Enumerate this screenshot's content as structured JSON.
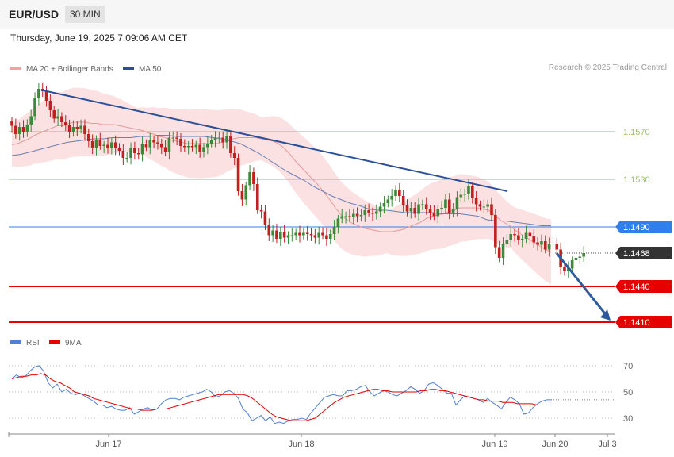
{
  "header": {
    "pair": "EUR/USD",
    "timeframe": "30 MIN",
    "datetime": "Thursday, June 19, 2025 7:09:06 AM CET"
  },
  "legend": {
    "ma20": "MA 20 + Bollinger Bands",
    "ma50": "MA 50",
    "credit": "Research © 2025 Trading Central"
  },
  "colors": {
    "up": "#3a8a3a",
    "down": "#c21f1f",
    "resistance": "#9ac25e",
    "support": "#e60000",
    "pivot": "#2f80ed",
    "trend": "#2c4f9a",
    "band": "#f7c9c9",
    "rsi": "#4f7fd6",
    "rsi_ma": "#e60000"
  },
  "chart_data": {
    "type": "candlestick",
    "x_ticks": [
      "Jun 17",
      "Jun 18",
      "Jun 19",
      "Jun 20",
      "Jul 3"
    ],
    "y_range": [
      1.1395,
      1.161
    ],
    "levels": [
      {
        "value": 1.157,
        "label": "1.1570",
        "kind": "resistance"
      },
      {
        "value": 1.153,
        "label": "1.1530",
        "kind": "resistance"
      },
      {
        "value": 1.149,
        "label": "1.1490",
        "kind": "pivot"
      },
      {
        "value": 1.1468,
        "label": "1.1468",
        "kind": "last"
      },
      {
        "value": 1.144,
        "label": "1.1440",
        "kind": "support"
      },
      {
        "value": 1.141,
        "label": "1.1410",
        "kind": "support"
      }
    ],
    "closes": [
      1.1575,
      1.1568,
      1.1574,
      1.157,
      1.1576,
      1.1583,
      1.1598,
      1.1606,
      1.1604,
      1.1596,
      1.1588,
      1.1581,
      1.1583,
      1.1578,
      1.1576,
      1.157,
      1.1574,
      1.1572,
      1.1575,
      1.1568,
      1.1562,
      1.1556,
      1.1563,
      1.1558,
      1.1559,
      1.1556,
      1.1561,
      1.1556,
      1.1554,
      1.1548,
      1.1548,
      1.1556,
      1.1552,
      1.1551,
      1.156,
      1.1557,
      1.1563,
      1.1561,
      1.156,
      1.1557,
      1.1553,
      1.1565,
      1.1565,
      1.1564,
      1.1558,
      1.1557,
      1.1558,
      1.1557,
      1.1559,
      1.1553,
      1.1557,
      1.156,
      1.1563,
      1.1565,
      1.1565,
      1.1561,
      1.1566,
      1.1552,
      1.1548,
      1.152,
      1.1513,
      1.1525,
      1.1536,
      1.1526,
      1.1504,
      1.1503,
      1.1492,
      1.1483,
      1.1487,
      1.148,
      1.1486,
      1.1481,
      1.1483,
      1.1483,
      1.1485,
      1.1483,
      1.1485,
      1.1484,
      1.1483,
      1.1481,
      1.1485,
      1.1483,
      1.148,
      1.1484,
      1.149,
      1.1497,
      1.1499,
      1.1499,
      1.1498,
      1.1501,
      1.1499,
      1.15,
      1.1504,
      1.1502,
      1.1501,
      1.1503,
      1.1507,
      1.151,
      1.1513,
      1.1516,
      1.1521,
      1.1516,
      1.1508,
      1.1503,
      1.1506,
      1.1501,
      1.1509,
      1.1509,
      1.1505,
      1.1502,
      1.1499,
      1.1505,
      1.1506,
      1.1513,
      1.1502,
      1.1505,
      1.1515,
      1.1517,
      1.1518,
      1.1524,
      1.1514,
      1.1509,
      1.1507,
      1.1507,
      1.1509,
      1.15,
      1.1473,
      1.1464,
      1.1476,
      1.1479,
      1.1484,
      1.1483,
      1.1479,
      1.148,
      1.1485,
      1.1482,
      1.1477,
      1.1475,
      1.1478,
      1.1471,
      1.1476,
      1.1476,
      1.1471,
      1.1456,
      1.1453,
      1.1455,
      1.1462,
      1.1464,
      1.1465,
      1.1468
    ],
    "ma20": [
      1.1559,
      1.156,
      1.1562,
      1.1564,
      1.1567,
      1.1569,
      1.1571,
      1.1573,
      1.1575,
      1.1575,
      1.1577,
      1.1578,
      1.1578,
      1.1578,
      1.1577,
      1.1577,
      1.1576,
      1.1576,
      1.1576,
      1.1575,
      1.1574,
      1.1573,
      1.1572,
      1.1571,
      1.1569,
      1.1568,
      1.1566,
      1.1565,
      1.1563,
      1.1562,
      1.1561,
      1.156,
      1.156,
      1.156,
      1.156,
      1.156,
      1.156,
      1.1561,
      1.1563,
      1.1564,
      1.1565,
      1.1565,
      1.1565,
      1.1565,
      1.1564,
      1.1563,
      1.1562,
      1.156,
      1.1556,
      1.1551,
      1.1545,
      1.154,
      1.1535,
      1.153,
      1.1525,
      1.1519,
      1.1513,
      1.1506,
      1.15,
      1.1496,
      1.1493,
      1.1491,
      1.1489,
      1.1488,
      1.1487,
      1.1486,
      1.1486,
      1.1486,
      1.1487,
      1.1488,
      1.149,
      1.1492,
      1.1494,
      1.1497,
      1.1499,
      1.15,
      1.1501,
      1.1503,
      1.1504,
      1.1506,
      1.1506,
      1.1506,
      1.1506,
      1.1505,
      1.1504,
      1.15,
      1.1496,
      1.1493,
      1.149,
      1.1486,
      1.1483,
      1.148,
      1.1477,
      1.1474,
      1.1471,
      1.1469
    ],
    "ma50": [
      1.155,
      1.1551,
      1.1553,
      1.1555,
      1.1557,
      1.1559,
      1.1561,
      1.1562,
      1.1563,
      1.1564,
      1.1564,
      1.1565,
      1.1565,
      1.1565,
      1.1566,
      1.1566,
      1.1567,
      1.1567,
      1.1566,
      1.1566,
      1.1566,
      1.1566,
      1.1565,
      1.1564,
      1.1562,
      1.156,
      1.1556,
      1.1552,
      1.1547,
      1.1542,
      1.1537,
      1.1533,
      1.1529,
      1.1524,
      1.152,
      1.1516,
      1.1513,
      1.151,
      1.1508,
      1.1505,
      1.1504,
      1.1504,
      1.1503,
      1.1502,
      1.1502,
      1.1502,
      1.1502,
      1.1501,
      1.1501,
      1.1501,
      1.15,
      1.1499,
      1.1496,
      1.1495,
      1.1495,
      1.1494,
      1.1493,
      1.1492,
      1.1491,
      1.1491
    ],
    "trend_line": {
      "start": 1.1605,
      "end": 1.152
    },
    "projection": {
      "from": 1.1468,
      "to": 1.141
    },
    "rsi": {
      "ticks": [
        70,
        50,
        30
      ],
      "legend": [
        "RSI",
        "9MA"
      ],
      "values": [
        60,
        63,
        61,
        62,
        66,
        69,
        70,
        66,
        57,
        53,
        56,
        50,
        52,
        49,
        48,
        49,
        47,
        45,
        43,
        40,
        40,
        38,
        39,
        37,
        36,
        36,
        38,
        33,
        35,
        37,
        38,
        36,
        37,
        41,
        44,
        45,
        45,
        44,
        46,
        47,
        48,
        49,
        50,
        52,
        50,
        46,
        47,
        50,
        51,
        49,
        45,
        37,
        34,
        28,
        30,
        32,
        28,
        31,
        26,
        27,
        26,
        28,
        29,
        29,
        30,
        29,
        34,
        38,
        42,
        46,
        47,
        48,
        47,
        47,
        51,
        51,
        52,
        54,
        55,
        50,
        47,
        49,
        51,
        50,
        48,
        47,
        49,
        51,
        54,
        52,
        49,
        51,
        56,
        57,
        55,
        52,
        49,
        49,
        40,
        44,
        47,
        46,
        45,
        44,
        42,
        45,
        42,
        40,
        37,
        42,
        46,
        44,
        41,
        33,
        34,
        38,
        41,
        43,
        44,
        44
      ],
      "ma": [
        60,
        61,
        62,
        62,
        63,
        63,
        64,
        63,
        60,
        58,
        57,
        55,
        53,
        50,
        49,
        48,
        47,
        45,
        44,
        43,
        42,
        41,
        40,
        39,
        38,
        37,
        37,
        36,
        36,
        36,
        37,
        37,
        37,
        38,
        39,
        40,
        41,
        42,
        43,
        44,
        45,
        46,
        47,
        48,
        48,
        48,
        48,
        48,
        48,
        47,
        45,
        42,
        39,
        36,
        33,
        31,
        30,
        29,
        28,
        28,
        28,
        28,
        29,
        30,
        33,
        36,
        39,
        42,
        44,
        46,
        47,
        48,
        49,
        50,
        51,
        52,
        52,
        51,
        51,
        50,
        50,
        50,
        50,
        50,
        50,
        51,
        51,
        52,
        52,
        51,
        51,
        50,
        49,
        48,
        47,
        46,
        45,
        44,
        44,
        43,
        43,
        43,
        42,
        42,
        42,
        41,
        41,
        41,
        41,
        40,
        40,
        40,
        40
      ]
    }
  }
}
